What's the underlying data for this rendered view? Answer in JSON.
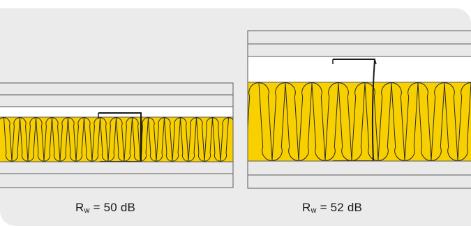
{
  "panels": [
    {
      "caption": {
        "prefix": "R",
        "subscript": "w",
        "suffix": " = 50 dB"
      }
    },
    {
      "caption": {
        "prefix": "R",
        "subscript": "w",
        "suffix": " = 52 dB"
      }
    }
  ],
  "colors": {
    "background": "#ebebeb",
    "board": "#e9e9e9",
    "outline": "#5a5a5a",
    "insulation": "#f8d000",
    "insulation_stroke": "#2a2a2a",
    "stud": "#1a1a1a",
    "cavity": "#ffffff"
  }
}
